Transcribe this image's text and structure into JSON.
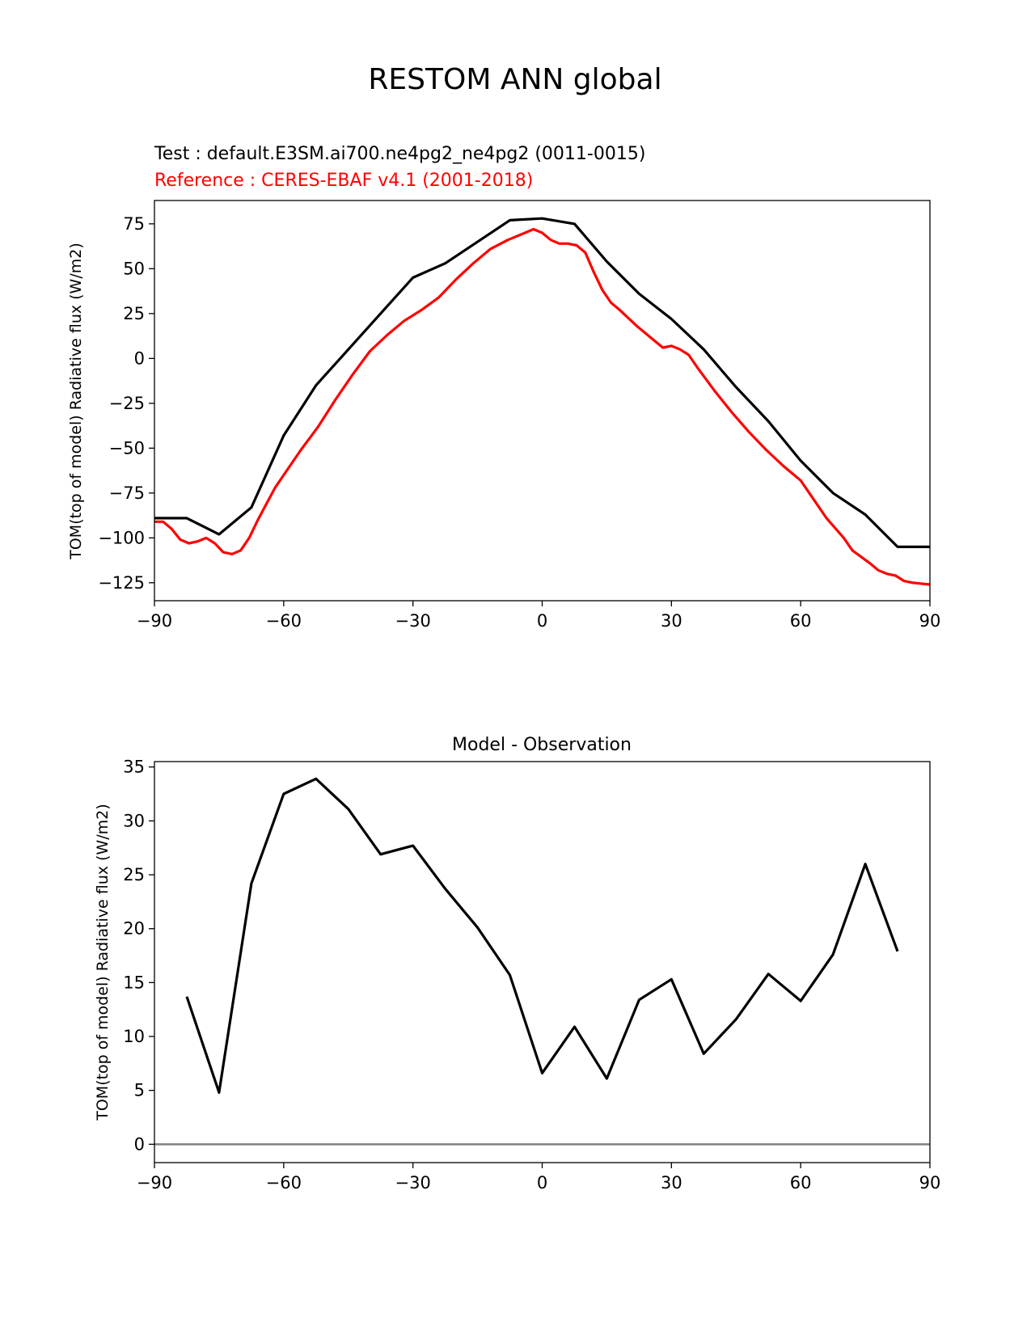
{
  "figure": {
    "title": "RESTOM ANN global"
  },
  "chart_data": [
    {
      "type": "line",
      "test_label": "Test : default.E3SM.ai700.ne4pg2_ne4pg2 (0011-0015)",
      "ref_label": "Reference : CERES-EBAF v4.1 (2001-2018)",
      "ylabel": "TOM(top of model) Radiative flux (W/m2)",
      "xlim": [
        -90,
        90
      ],
      "ylim": [
        -135,
        88
      ],
      "xticks": [
        -90,
        -60,
        -30,
        0,
        30,
        60,
        90
      ],
      "xtick_labels": [
        "−90",
        "−60",
        "−30",
        "0",
        "30",
        "60",
        "90"
      ],
      "yticks": [
        -125,
        -100,
        -75,
        -50,
        -25,
        0,
        25,
        50,
        75
      ],
      "ytick_labels": [
        "−125",
        "−100",
        "−75",
        "−50",
        "−25",
        "0",
        "25",
        "50",
        "75"
      ],
      "series": [
        {
          "role": "test",
          "color": "#000000",
          "x": [
            -90,
            -82.5,
            -75,
            -67.5,
            -60,
            -52.5,
            -45,
            -37.5,
            -30,
            -22.5,
            -15,
            -7.5,
            0,
            7.5,
            15,
            22.5,
            30,
            37.5,
            45,
            52.5,
            60,
            67.5,
            75,
            82.5,
            90
          ],
          "y": [
            -89,
            -89,
            -98,
            -83,
            -43,
            -15,
            5,
            25,
            45,
            53,
            65,
            77,
            78,
            75,
            54,
            36,
            22,
            5,
            -16,
            -35,
            -57,
            -75,
            -87,
            -105,
            -105
          ]
        },
        {
          "role": "reference",
          "color": "#ff0000",
          "x": [
            -90,
            -88,
            -86,
            -84,
            -82,
            -80,
            -78,
            -76,
            -74,
            -72,
            -70,
            -68,
            -66,
            -64,
            -62,
            -60,
            -56,
            -52,
            -48,
            -44,
            -40,
            -36,
            -32,
            -28,
            -24,
            -20,
            -16,
            -12,
            -8,
            -4,
            -2,
            0,
            2,
            4,
            6,
            8,
            10,
            12,
            14,
            16,
            18,
            22,
            26,
            28,
            30,
            32,
            34,
            36,
            40,
            44,
            48,
            52,
            56,
            58,
            60,
            62,
            66,
            70,
            72,
            76,
            78,
            80,
            82,
            84,
            86,
            90
          ],
          "y": [
            -91,
            -91,
            -95,
            -101,
            -103,
            -102,
            -100,
            -103,
            -108,
            -109,
            -107,
            -100,
            -90,
            -81,
            -72,
            -65,
            -51,
            -38,
            -23,
            -9,
            4,
            13,
            21,
            27,
            34,
            44,
            53,
            61,
            66,
            70,
            72,
            70,
            66,
            64,
            64,
            63,
            59,
            48,
            38,
            31,
            27,
            18,
            10,
            6,
            7,
            5,
            2,
            -5,
            -18,
            -30,
            -41,
            -51,
            -60,
            -64,
            -68,
            -75,
            -89,
            -100,
            -107,
            -114,
            -118,
            -120,
            -121,
            -124,
            -125,
            -126
          ]
        }
      ]
    },
    {
      "type": "line",
      "title": "Model - Observation",
      "ylabel": "TOM(top of model) Radiative flux (W/m2)",
      "xlim": [
        -90,
        90
      ],
      "ylim": [
        -1.7,
        35.5
      ],
      "xticks": [
        -90,
        -60,
        -30,
        0,
        30,
        60,
        90
      ],
      "xtick_labels": [
        "−90",
        "−60",
        "−30",
        "0",
        "30",
        "60",
        "90"
      ],
      "yticks": [
        0,
        5,
        10,
        15,
        20,
        25,
        30,
        35
      ],
      "ytick_labels": [
        "0",
        "5",
        "10",
        "15",
        "20",
        "25",
        "30",
        "35"
      ],
      "zero_line_color": "#808080",
      "series": [
        {
          "role": "difference",
          "color": "#000000",
          "x": [
            -82.5,
            -75,
            -67.5,
            -60,
            -52.5,
            -45,
            -37.5,
            -30,
            -22.5,
            -15,
            -7.5,
            0,
            7.5,
            15,
            22.5,
            30,
            37.5,
            45,
            52.5,
            60,
            67.5,
            75,
            82.5
          ],
          "y": [
            13.7,
            4.8,
            24.2,
            32.5,
            33.9,
            31.1,
            26.9,
            27.7,
            23.7,
            20.1,
            15.7,
            6.6,
            10.9,
            6.1,
            13.4,
            15.3,
            8.4,
            11.6,
            15.8,
            13.3,
            17.6,
            26.0,
            17.9
          ]
        }
      ]
    }
  ]
}
